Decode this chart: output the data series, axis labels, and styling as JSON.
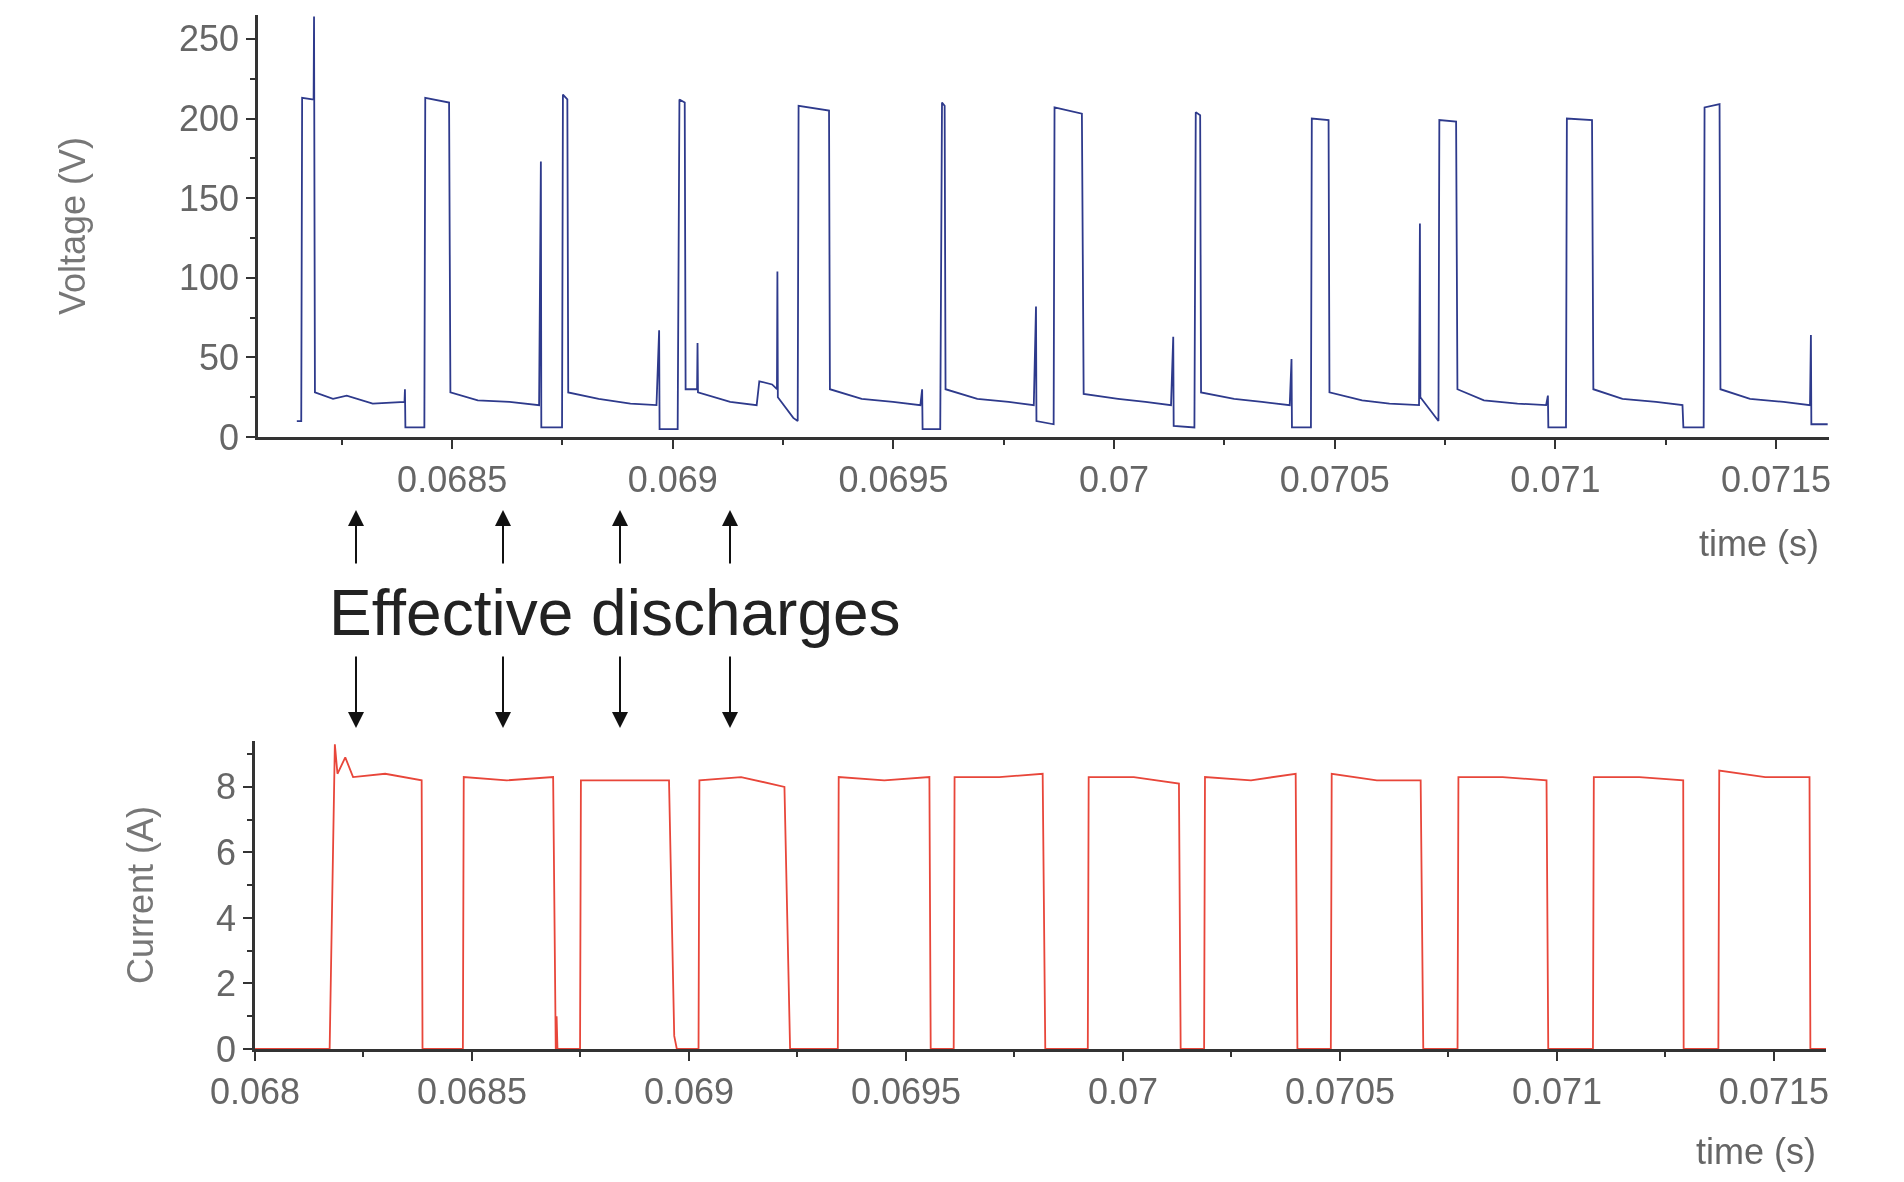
{
  "chart_data": [
    {
      "type": "line",
      "xlabel": "time (s)",
      "ylabel": "Voltage (V)",
      "xlim": [
        0.06806,
        0.07162
      ],
      "ylim": [
        0,
        265
      ],
      "xticks": [
        {
          "value": 0.06825,
          "label": null
        },
        0.0685,
        {
          "value": 0.06875,
          "label": null
        },
        0.069,
        {
          "value": 0.06925,
          "label": null
        },
        0.0695,
        {
          "value": 0.06975,
          "label": null
        },
        0.07,
        {
          "value": 0.07025,
          "label": null
        },
        0.0705,
        {
          "value": 0.07075,
          "label": null
        },
        0.071,
        {
          "value": 0.07125,
          "label": null
        },
        0.0715
      ],
      "yticks": [
        0,
        {
          "value": 25,
          "label": null
        },
        50,
        {
          "value": 75,
          "label": null
        },
        100,
        {
          "value": 125,
          "label": null
        },
        150,
        {
          "value": 175,
          "label": null
        },
        200,
        {
          "value": 225,
          "label": null
        },
        250
      ],
      "x": [
        0.068148,
        0.068158,
        0.06816,
        0.068183,
        0.068186,
        0.068187,
        0.068189,
        0.06823,
        0.068261,
        0.06832,
        0.068392,
        0.068393,
        0.068394,
        0.068437,
        0.068439,
        0.068493,
        0.068496,
        0.068558,
        0.06863,
        0.068697,
        0.068701,
        0.068702,
        0.068749,
        0.068751,
        0.068761,
        0.068763,
        0.068832,
        0.068904,
        0.068963,
        0.068969,
        0.06897,
        0.069011,
        0.069015,
        0.069027,
        0.069029,
        0.069055,
        0.069056,
        0.069057,
        0.06913,
        0.06919,
        0.069196,
        0.069225,
        0.069236,
        0.069237,
        0.069238,
        0.069273,
        0.069283,
        0.069285,
        0.069354,
        0.069356,
        0.069428,
        0.069499,
        0.069561,
        0.069565,
        0.069566,
        0.069606,
        0.06961,
        0.069616,
        0.069618,
        0.06969,
        0.069761,
        0.069818,
        0.069823,
        0.069824,
        0.069863,
        0.069865,
        0.069927,
        0.069931,
        0.070009,
        0.070071,
        0.070129,
        0.070134,
        0.070135,
        0.070182,
        0.070185,
        0.070195,
        0.070197,
        0.070272,
        0.070335,
        0.070398,
        0.070402,
        0.070403,
        0.070446,
        0.070448,
        0.070486,
        0.070488,
        0.070562,
        0.070624,
        0.070691,
        0.070693,
        0.070694,
        0.070735,
        0.070737,
        0.070775,
        0.070778,
        0.070838,
        0.070914,
        0.070979,
        0.070983,
        0.070984,
        0.071024,
        0.071026,
        0.071083,
        0.071086,
        0.071152,
        0.071228,
        0.071288,
        0.07129,
        0.071336,
        0.071338,
        0.071372,
        0.071374,
        0.071441,
        0.071517,
        0.071577,
        0.071579,
        0.07158,
        0.071617
      ],
      "series": [
        {
          "color": "#2e3a8c",
          "values": [
            10,
            10,
            213,
            212,
            212,
            264,
            28,
            24,
            26,
            21,
            22,
            30,
            6,
            6,
            213,
            210,
            28,
            23,
            22,
            20,
            173,
            6,
            6,
            215,
            212,
            28,
            24,
            21,
            20,
            67,
            5,
            5,
            212,
            210,
            30,
            30,
            59,
            28,
            22,
            20,
            35,
            33,
            30,
            104,
            25,
            12,
            10,
            208,
            205,
            30,
            24,
            22,
            20,
            30,
            5,
            5,
            210,
            208,
            30,
            24,
            22,
            20,
            82,
            10,
            8,
            207,
            203,
            27,
            24,
            22,
            20,
            63,
            7,
            6,
            204,
            202,
            28,
            24,
            22,
            20,
            49,
            6,
            6,
            200,
            199,
            28,
            23,
            21,
            20,
            134,
            25,
            10,
            199,
            198,
            30,
            23,
            21,
            20,
            26,
            6,
            6,
            200,
            199,
            30,
            24,
            22,
            20,
            6,
            6,
            207,
            209,
            30,
            24,
            22,
            20,
            64,
            8,
            8
          ]
        }
      ]
    },
    {
      "type": "line",
      "xlabel": "time (s)",
      "ylabel": "Current (A)",
      "xlim": [
        0.068,
        0.07162
      ],
      "ylim": [
        0,
        9.4
      ],
      "xticks": [
        0.068,
        {
          "value": 0.06825,
          "label": null
        },
        0.0685,
        {
          "value": 0.06875,
          "label": null
        },
        0.069,
        {
          "value": 0.06925,
          "label": null
        },
        0.0695,
        {
          "value": 0.06975,
          "label": null
        },
        0.07,
        {
          "value": 0.07025,
          "label": null
        },
        0.0705,
        {
          "value": 0.07075,
          "label": null
        },
        0.071,
        {
          "value": 0.07125,
          "label": null
        },
        0.0715
      ],
      "yticks": [
        0,
        {
          "value": 1,
          "label": null
        },
        2,
        {
          "value": 3,
          "label": null
        },
        4,
        {
          "value": 5,
          "label": null
        },
        6,
        {
          "value": 7,
          "label": null
        },
        8,
        {
          "value": 9,
          "label": null
        }
      ],
      "annotations": [
        "Effective discharges"
      ],
      "x": [
        0.068,
        0.068172,
        0.068184,
        0.06819,
        0.068208,
        0.068226,
        0.0683,
        0.068384,
        0.068386,
        0.068479,
        0.068481,
        0.06858,
        0.068687,
        0.068693,
        0.068695,
        0.068697,
        0.068749,
        0.068751,
        0.06885,
        0.068954,
        0.068966,
        0.068972,
        0.069022,
        0.069024,
        0.06912,
        0.06922,
        0.069233,
        0.069343,
        0.069345,
        0.06945,
        0.069554,
        0.069557,
        0.06961,
        0.069612,
        0.069715,
        0.069815,
        0.069821,
        0.069919,
        0.069921,
        0.070025,
        0.070129,
        0.070133,
        0.070187,
        0.070189,
        0.070295,
        0.070398,
        0.070402,
        0.070479,
        0.070481,
        0.070585,
        0.070686,
        0.070692,
        0.070771,
        0.070773,
        0.070875,
        0.070976,
        0.07098,
        0.071083,
        0.071085,
        0.07119,
        0.071291,
        0.071292,
        0.071372,
        0.071374,
        0.07148,
        0.071582,
        0.071584,
        0.07162
      ],
      "series": [
        {
          "color": "#e8463a",
          "values": [
            0,
            0,
            9.3,
            8.4,
            8.9,
            8.3,
            8.4,
            8.2,
            0,
            0,
            8.3,
            8.2,
            8.3,
            0,
            1.0,
            0,
            0,
            8.2,
            8.2,
            8.2,
            0.4,
            0,
            0,
            8.2,
            8.3,
            8.0,
            0,
            0,
            8.3,
            8.2,
            8.3,
            0,
            0,
            8.3,
            8.3,
            8.4,
            0,
            0,
            8.3,
            8.3,
            8.1,
            0,
            0,
            8.3,
            8.2,
            8.4,
            0,
            0,
            8.4,
            8.2,
            8.2,
            0,
            0,
            8.3,
            8.3,
            8.2,
            0,
            0,
            8.3,
            8.3,
            8.2,
            0,
            0,
            8.5,
            8.3,
            8.3,
            0,
            0
          ]
        }
      ]
    }
  ]
}
